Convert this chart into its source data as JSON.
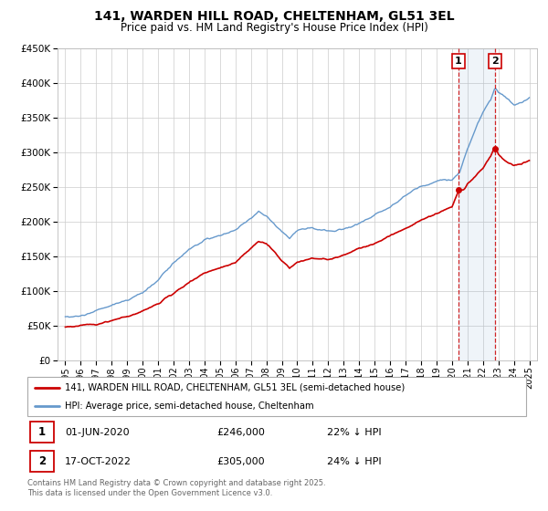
{
  "title": "141, WARDEN HILL ROAD, CHELTENHAM, GL51 3EL",
  "subtitle": "Price paid vs. HM Land Registry's House Price Index (HPI)",
  "legend_line1": "141, WARDEN HILL ROAD, CHELTENHAM, GL51 3EL (semi-detached house)",
  "legend_line2": "HPI: Average price, semi-detached house, Cheltenham",
  "footnote": "Contains HM Land Registry data © Crown copyright and database right 2025.\nThis data is licensed under the Open Government Licence v3.0.",
  "transaction1_date": "01-JUN-2020",
  "transaction1_price": "£246,000",
  "transaction1_hpi": "22% ↓ HPI",
  "transaction2_date": "17-OCT-2022",
  "transaction2_price": "£305,000",
  "transaction2_hpi": "24% ↓ HPI",
  "line_color_property": "#cc0000",
  "line_color_hpi": "#6699cc",
  "vline1_x": 2020.42,
  "vline2_x": 2022.79,
  "background_color": "#ffffff",
  "grid_color": "#cccccc",
  "ylim": [
    0,
    450000
  ],
  "xlim": [
    1994.5,
    2025.5
  ],
  "yticks": [
    0,
    50000,
    100000,
    150000,
    200000,
    250000,
    300000,
    350000,
    400000,
    450000
  ],
  "xticks": [
    1995,
    1996,
    1997,
    1998,
    1999,
    2000,
    2001,
    2002,
    2003,
    2004,
    2005,
    2006,
    2007,
    2008,
    2009,
    2010,
    2011,
    2012,
    2013,
    2014,
    2015,
    2016,
    2017,
    2018,
    2019,
    2020,
    2021,
    2022,
    2023,
    2024,
    2025
  ],
  "hpi_kp": [
    [
      1995,
      62000
    ],
    [
      1996,
      66000
    ],
    [
      1997,
      72000
    ],
    [
      1998,
      80000
    ],
    [
      1999,
      88000
    ],
    [
      2000,
      98000
    ],
    [
      2001,
      115000
    ],
    [
      2002,
      140000
    ],
    [
      2003,
      160000
    ],
    [
      2004,
      172000
    ],
    [
      2005,
      178000
    ],
    [
      2006,
      185000
    ],
    [
      2007,
      202000
    ],
    [
      2007.5,
      212000
    ],
    [
      2008,
      206000
    ],
    [
      2008.5,
      196000
    ],
    [
      2009,
      182000
    ],
    [
      2009.5,
      172000
    ],
    [
      2010,
      184000
    ],
    [
      2011,
      190000
    ],
    [
      2012,
      185000
    ],
    [
      2013,
      190000
    ],
    [
      2014,
      200000
    ],
    [
      2015,
      212000
    ],
    [
      2016,
      224000
    ],
    [
      2017,
      238000
    ],
    [
      2018,
      250000
    ],
    [
      2019,
      258000
    ],
    [
      2020,
      260000
    ],
    [
      2020.5,
      272000
    ],
    [
      2021,
      305000
    ],
    [
      2021.5,
      335000
    ],
    [
      2022,
      360000
    ],
    [
      2022.5,
      378000
    ],
    [
      2022.79,
      398000
    ],
    [
      2023,
      390000
    ],
    [
      2023.5,
      382000
    ],
    [
      2024,
      372000
    ],
    [
      2024.5,
      375000
    ],
    [
      2025,
      382000
    ]
  ],
  "prop_kp": [
    [
      1995,
      48000
    ],
    [
      1996,
      50000
    ],
    [
      1997,
      53000
    ],
    [
      1998,
      58000
    ],
    [
      1999,
      63000
    ],
    [
      2000,
      70000
    ],
    [
      2001,
      80000
    ],
    [
      2002,
      93000
    ],
    [
      2003,
      108000
    ],
    [
      2004,
      122000
    ],
    [
      2005,
      132000
    ],
    [
      2006,
      142000
    ],
    [
      2007,
      162000
    ],
    [
      2007.5,
      172000
    ],
    [
      2008,
      166000
    ],
    [
      2008.5,
      156000
    ],
    [
      2009,
      142000
    ],
    [
      2009.5,
      132000
    ],
    [
      2010,
      142000
    ],
    [
      2011,
      148000
    ],
    [
      2012,
      145000
    ],
    [
      2013,
      150000
    ],
    [
      2014,
      160000
    ],
    [
      2015,
      168000
    ],
    [
      2016,
      178000
    ],
    [
      2017,
      190000
    ],
    [
      2018,
      203000
    ],
    [
      2019,
      213000
    ],
    [
      2019.5,
      218000
    ],
    [
      2020.0,
      222000
    ],
    [
      2020.42,
      246000
    ],
    [
      2020.8,
      248000
    ],
    [
      2021,
      256000
    ],
    [
      2021.5,
      266000
    ],
    [
      2022,
      276000
    ],
    [
      2022.5,
      292000
    ],
    [
      2022.79,
      305000
    ],
    [
      2023,
      294000
    ],
    [
      2023.5,
      284000
    ],
    [
      2024,
      278000
    ],
    [
      2024.5,
      280000
    ],
    [
      2025,
      288000
    ]
  ]
}
